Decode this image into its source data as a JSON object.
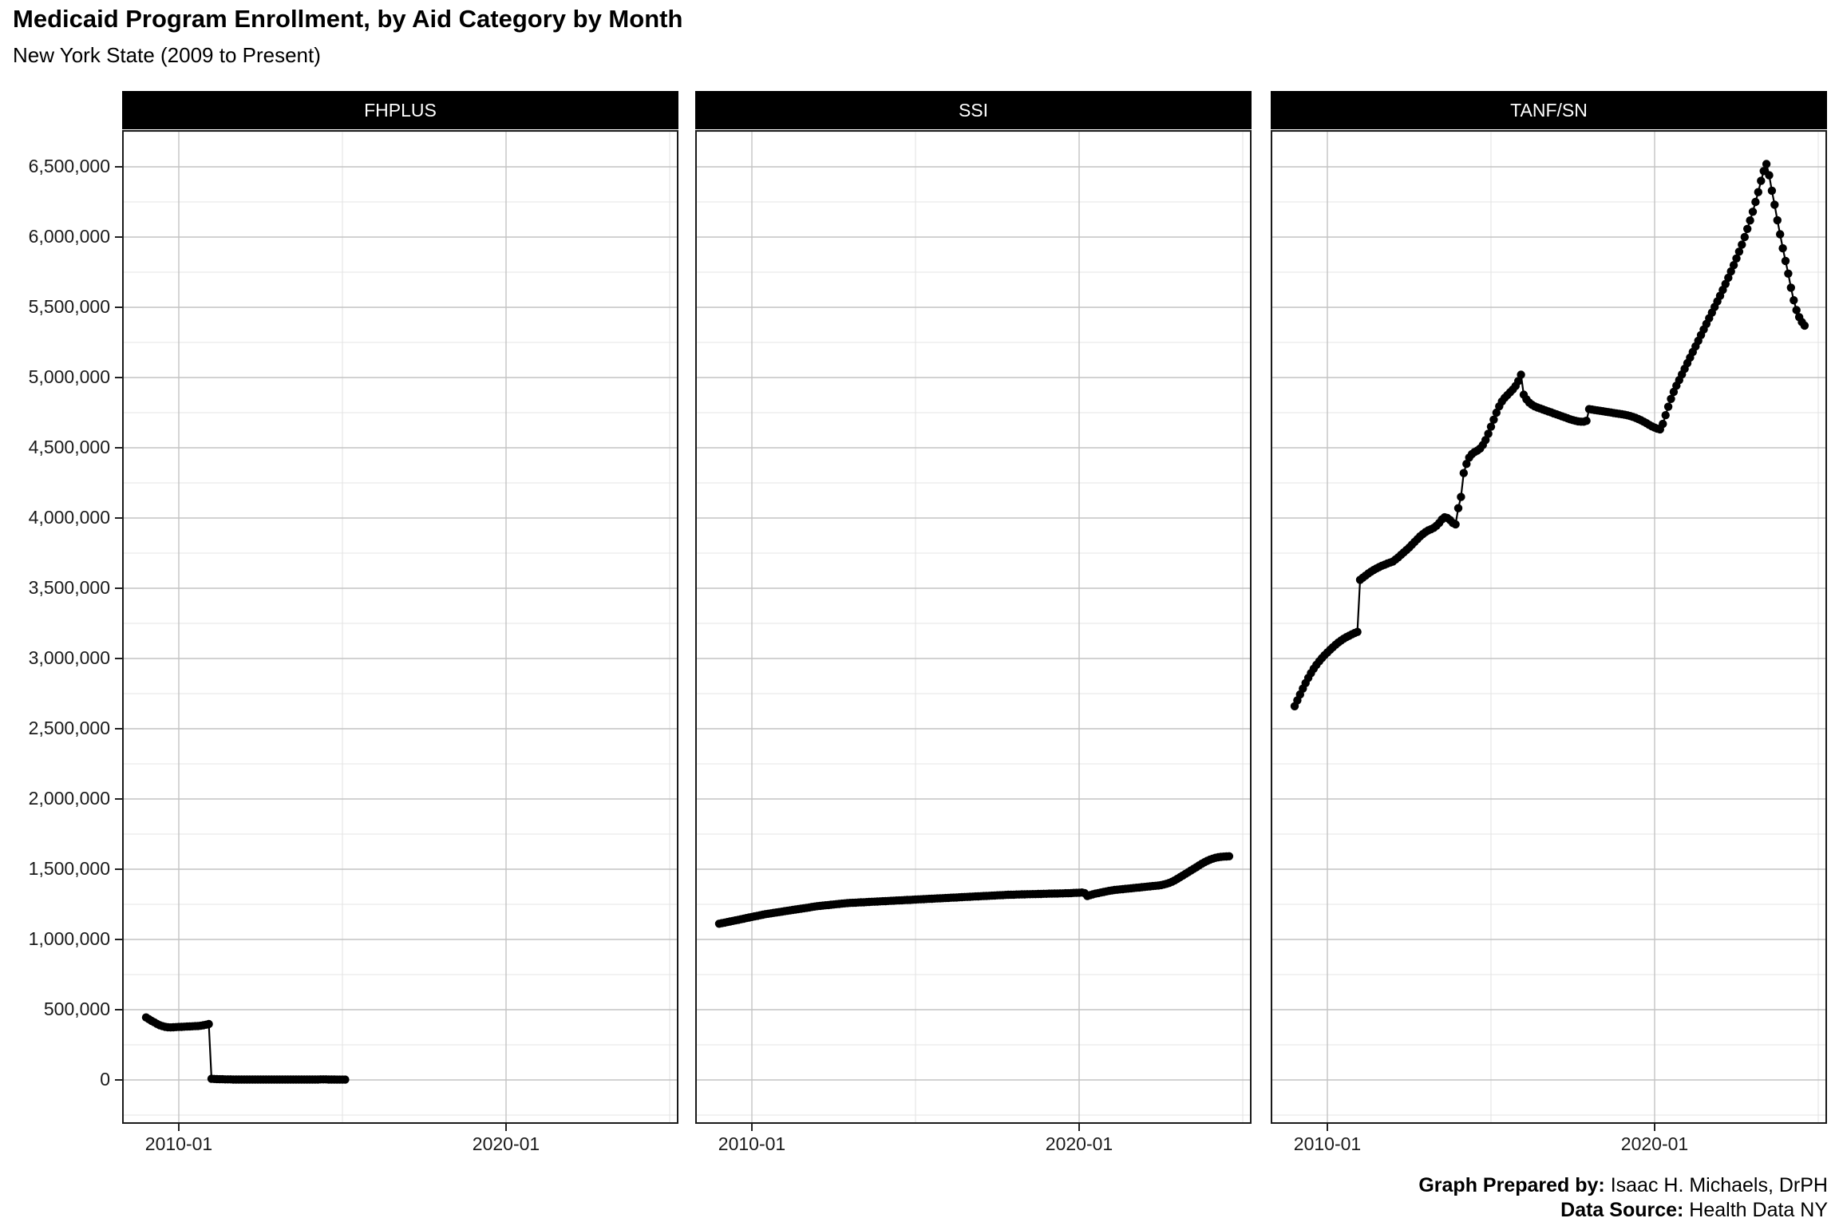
{
  "header": {
    "title": "Medicaid Program Enrollment, by Aid Category by Month",
    "subtitle": "New York State (2009 to Present)"
  },
  "caption": {
    "prepared_by_label": "Graph Prepared by:",
    "prepared_by_value": " Isaac H. Michaels, DrPH",
    "source_label": "Data Source:",
    "source_value": " Health Data NY"
  },
  "chart_data": {
    "type": "scatter",
    "title": "Medicaid Program Enrollment, by Aid Category by Month",
    "subtitle": "New York State (2009 to Present)",
    "facet_labels": [
      "FHPLUS",
      "SSI",
      "TANF/SN"
    ],
    "legend": "none",
    "grid": "on",
    "colors": {
      "point": "#000000",
      "strip_bg": "#000000",
      "strip_text": "#ffffff",
      "grid_major": "#c3c3c3",
      "grid_minor": "#e4e4e4",
      "panel_border": "#1a1a1a"
    },
    "x_axis": {
      "start": "2009-01",
      "end": "2024-08",
      "frequency": "monthly",
      "major_ticks": [
        "2010-01",
        "2020-01"
      ],
      "minor_gridlines": [
        "2015-01",
        "2025-01"
      ]
    },
    "y_axis": {
      "limits": [
        0,
        6500000
      ],
      "tick_values": [
        0,
        500000,
        1000000,
        1500000,
        2000000,
        2500000,
        3000000,
        3500000,
        4000000,
        4500000,
        5000000,
        5500000,
        6000000,
        6500000
      ],
      "tick_labels": [
        "0",
        "500,000",
        "1,000,000",
        "1,500,000",
        "2,000,000",
        "2,500,000",
        "3,000,000",
        "3,500,000",
        "4,000,000",
        "4,500,000",
        "5,000,000",
        "5,500,000",
        "6,000,000",
        "6,500,000"
      ]
    },
    "values_unit": "thousands of enrollees",
    "series": [
      {
        "name": "FHPLUS",
        "start": "2009-01",
        "end": "2015-02",
        "values_thousands": [
          445,
          433,
          421,
          410,
          399,
          390,
          383,
          378,
          375,
          374,
          375,
          376,
          377,
          378,
          379,
          380,
          381,
          382,
          383,
          384,
          386,
          389,
          393,
          398,
          8,
          7,
          6,
          5,
          5,
          4,
          4,
          4,
          3,
          3,
          3,
          3,
          3,
          3,
          3,
          3,
          3,
          3,
          3,
          3,
          3,
          3,
          3,
          3,
          3,
          3,
          3,
          3,
          3,
          3,
          3,
          3,
          3,
          3,
          3,
          3,
          3,
          3,
          3,
          3,
          4,
          4,
          4,
          3,
          3,
          3,
          2,
          2,
          2,
          2
        ]
      },
      {
        "name": "SSI",
        "start": "2009-01",
        "end": "2024-08",
        "values_thousands": [
          1112,
          1116,
          1120,
          1124,
          1128,
          1132,
          1136,
          1140,
          1144,
          1148,
          1152,
          1156,
          1160,
          1164,
          1168,
          1172,
          1176,
          1180,
          1183,
          1186,
          1189,
          1192,
          1195,
          1198,
          1201,
          1204,
          1207,
          1210,
          1213,
          1216,
          1219,
          1222,
          1225,
          1228,
          1231,
          1234,
          1237,
          1239,
          1241,
          1243,
          1245,
          1247,
          1249,
          1251,
          1253,
          1255,
          1257,
          1259,
          1260,
          1261,
          1262,
          1263,
          1264,
          1265,
          1266,
          1267,
          1268,
          1269,
          1270,
          1271,
          1272,
          1273,
          1274,
          1275,
          1276,
          1277,
          1278,
          1279,
          1280,
          1281,
          1282,
          1283,
          1284,
          1285,
          1286,
          1287,
          1288,
          1289,
          1290,
          1291,
          1292,
          1293,
          1294,
          1295,
          1296,
          1297,
          1298,
          1299,
          1300,
          1301,
          1302,
          1303,
          1304,
          1305,
          1306,
          1307,
          1308,
          1309,
          1310,
          1311,
          1312,
          1313,
          1314,
          1315,
          1316,
          1317,
          1318,
          1319,
          1319,
          1320,
          1320,
          1321,
          1321,
          1322,
          1322,
          1323,
          1323,
          1324,
          1324,
          1325,
          1325,
          1326,
          1326,
          1327,
          1327,
          1328,
          1328,
          1329,
          1329,
          1330,
          1331,
          1332,
          1333,
          1334,
          1330,
          1309,
          1316,
          1321,
          1326,
          1330,
          1334,
          1338,
          1342,
          1346,
          1349,
          1352,
          1354,
          1356,
          1358,
          1360,
          1362,
          1364,
          1366,
          1368,
          1370,
          1372,
          1374,
          1376,
          1378,
          1380,
          1382,
          1384,
          1387,
          1391,
          1396,
          1402,
          1410,
          1420,
          1431,
          1443,
          1455,
          1467,
          1479,
          1491,
          1503,
          1515,
          1527,
          1539,
          1550,
          1560,
          1568,
          1575,
          1581,
          1585,
          1588,
          1590,
          1591,
          1592
        ]
      },
      {
        "name": "TANF/SN",
        "start": "2009-01",
        "end": "2024-08",
        "values_thousands": [
          2660,
          2702,
          2744,
          2786,
          2825,
          2862,
          2896,
          2927,
          2955,
          2980,
          3003,
          3024,
          3043,
          3062,
          3080,
          3098,
          3114,
          3128,
          3141,
          3152,
          3162,
          3172,
          3181,
          3189,
          3560,
          3575,
          3590,
          3605,
          3618,
          3630,
          3641,
          3651,
          3660,
          3668,
          3676,
          3683,
          3690,
          3705,
          3720,
          3738,
          3755,
          3772,
          3790,
          3810,
          3830,
          3850,
          3870,
          3885,
          3900,
          3912,
          3920,
          3930,
          3945,
          3965,
          3990,
          4005,
          4000,
          3985,
          3965,
          3955,
          4070,
          4150,
          4320,
          4385,
          4430,
          4455,
          4470,
          4480,
          4495,
          4520,
          4555,
          4600,
          4650,
          4700,
          4750,
          4795,
          4830,
          4855,
          4875,
          4895,
          4915,
          4940,
          4975,
          5020,
          4878,
          4845,
          4822,
          4806,
          4795,
          4787,
          4780,
          4773,
          4766,
          4759,
          4752,
          4745,
          4738,
          4731,
          4724,
          4717,
          4710,
          4703,
          4697,
          4692,
          4688,
          4686,
          4686,
          4692,
          4775,
          4772,
          4769,
          4766,
          4763,
          4760,
          4757,
          4754,
          4751,
          4748,
          4745,
          4742,
          4739,
          4735,
          4731,
          4726,
          4720,
          4713,
          4705,
          4696,
          4686,
          4675,
          4663,
          4652,
          4644,
          4636,
          4631,
          4670,
          4732,
          4792,
          4848,
          4898,
          4942,
          4982,
          5022,
          5062,
          5102,
          5142,
          5182,
          5222,
          5262,
          5302,
          5342,
          5382,
          5422,
          5462,
          5502,
          5542,
          5582,
          5624,
          5666,
          5710,
          5755,
          5800,
          5848,
          5896,
          5946,
          6000,
          6058,
          6118,
          6180,
          6250,
          6320,
          6400,
          6470,
          6520,
          6440,
          6330,
          6230,
          6120,
          6020,
          5920,
          5830,
          5740,
          5640,
          5550,
          5480,
          5430,
          5395,
          5370
        ]
      }
    ]
  }
}
